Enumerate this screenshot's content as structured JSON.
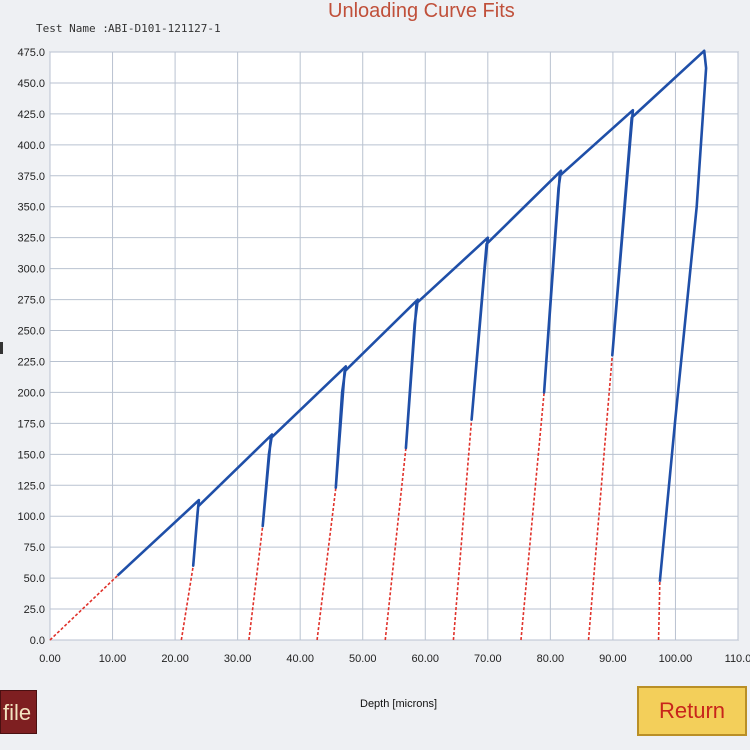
{
  "header": {
    "test_name_label": "Test Name :",
    "test_name_value": "ABI-D101-121127-1",
    "title": "Unloading Curve Fits"
  },
  "buttons": {
    "file_label": "file",
    "return_label": "Return"
  },
  "colors": {
    "loading_curve": "#1f4fa8",
    "fit_lines": "#e0312a",
    "grid": "#b9c2d0",
    "plot_background": "#ffffff",
    "return_button": "#f3cf5a",
    "file_button": "#7e1f21"
  },
  "chart_data": {
    "type": "line",
    "title": "Unloading Curve Fits",
    "xlabel": "Depth [microns]",
    "ylabel": "",
    "xlim": [
      0,
      110
    ],
    "ylim": [
      0,
      475
    ],
    "grid": true,
    "x_ticks": [
      "0.00",
      "10.00",
      "20.00",
      "30.00",
      "40.00",
      "50.00",
      "60.00",
      "70.00",
      "80.00",
      "90.00",
      "100.00",
      "110.0"
    ],
    "y_ticks": [
      "0.0",
      "25.0",
      "50.0",
      "75.0",
      "100.0",
      "125.0",
      "150.0",
      "175.0",
      "200.0",
      "225.0",
      "250.0",
      "275.0",
      "300.0",
      "325.0",
      "350.0",
      "375.0",
      "400.0",
      "425.0",
      "450.0",
      "475.0"
    ],
    "series": [
      {
        "style": "loading-unloading",
        "points": [
          [
            10.8,
            52
          ],
          [
            23.8,
            113
          ],
          [
            23.6,
            103
          ],
          [
            22.9,
            60
          ],
          [
            22.9,
            60
          ],
          [
            23.7,
            108
          ],
          [
            35.5,
            166
          ],
          [
            35.0,
            150
          ],
          [
            34.0,
            92
          ],
          [
            34.0,
            92
          ],
          [
            35.3,
            163
          ],
          [
            47.3,
            221
          ],
          [
            46.7,
            200
          ],
          [
            45.7,
            123
          ],
          [
            45.7,
            123
          ],
          [
            47.1,
            217
          ],
          [
            58.8,
            275
          ],
          [
            58.3,
            255
          ],
          [
            56.9,
            155
          ],
          [
            56.9,
            155
          ],
          [
            58.6,
            272
          ],
          [
            70.0,
            325
          ],
          [
            69.5,
            300
          ],
          [
            67.4,
            178
          ],
          [
            67.4,
            178
          ],
          [
            69.8,
            320
          ],
          [
            81.7,
            379
          ],
          [
            81.3,
            365
          ],
          [
            79.0,
            200
          ],
          [
            79.0,
            200
          ],
          [
            81.5,
            375
          ],
          [
            93.2,
            428
          ],
          [
            92.8,
            405
          ],
          [
            89.9,
            230
          ],
          [
            89.9,
            230
          ],
          [
            93.0,
            422
          ],
          [
            104.6,
            476
          ],
          [
            104.9,
            462
          ],
          [
            103.4,
            350
          ],
          [
            100.0,
            180
          ],
          [
            97.5,
            47
          ]
        ]
      },
      {
        "style": "fit-lines",
        "segments": [
          [
            [
              0,
              0
            ],
            [
              10.8,
              52
            ]
          ],
          [
            [
              21.0,
              0
            ],
            [
              22.9,
              60
            ]
          ],
          [
            [
              31.8,
              0
            ],
            [
              34.0,
              92
            ]
          ],
          [
            [
              42.7,
              0
            ],
            [
              45.7,
              123
            ]
          ],
          [
            [
              53.6,
              0
            ],
            [
              56.9,
              155
            ]
          ],
          [
            [
              64.5,
              0
            ],
            [
              67.4,
              178
            ]
          ],
          [
            [
              75.3,
              0
            ],
            [
              79.0,
              200
            ]
          ],
          [
            [
              86.1,
              0
            ],
            [
              89.9,
              230
            ]
          ],
          [
            [
              97.3,
              0
            ],
            [
              97.5,
              47
            ]
          ]
        ]
      }
    ]
  }
}
